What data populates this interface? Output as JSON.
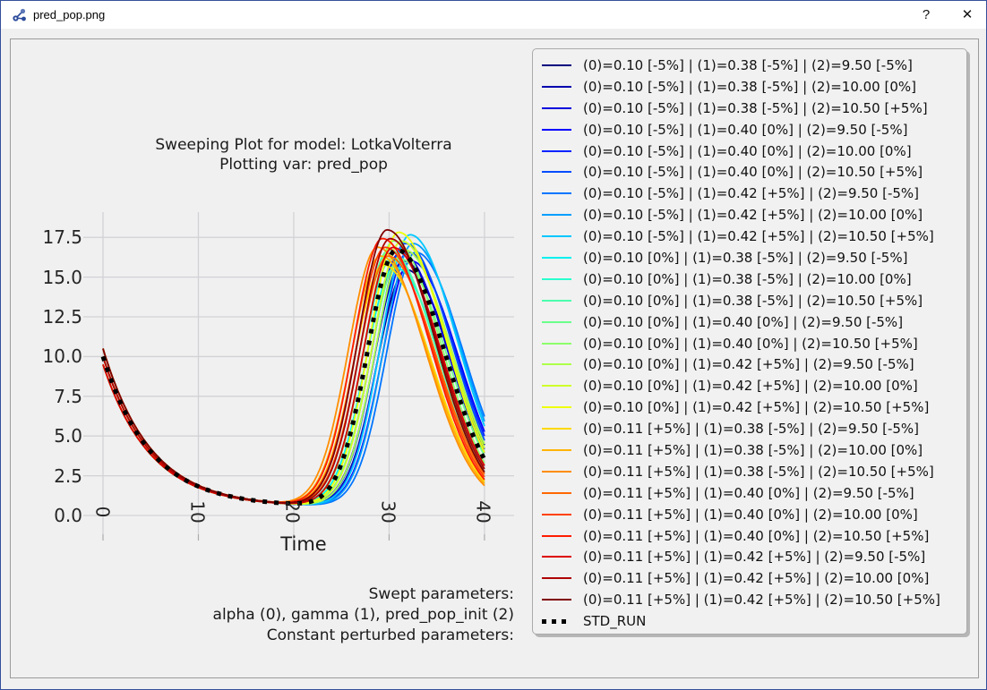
{
  "window": {
    "title": "pred_pop.png",
    "help_label": "?",
    "close_label": "✕"
  },
  "chart": {
    "title_line1": "Sweeping Plot for model: LotkaVolterra",
    "title_line2": "Plotting var: pred_pop",
    "footer_line1": "Swept parameters:",
    "footer_line2": "alpha (0), gamma (1), pred_pop_init (2)",
    "footer_line3": "Constant perturbed parameters:"
  },
  "chart_data": {
    "type": "line",
    "title": "Sweeping Plot for model: LotkaVolterra — Plotting var: pred_pop",
    "xlabel": "Time",
    "ylabel": "",
    "xticks": [
      "0",
      "10",
      "20",
      "30",
      "40"
    ],
    "yticks": [
      "0.0",
      "2.5",
      "5.0",
      "7.5",
      "10.0",
      "12.5",
      "15.0",
      "17.5"
    ],
    "xlim": [
      -2.1,
      43.1
    ],
    "ylim": [
      -1.2,
      19.1
    ],
    "grid": true,
    "legend_position": "outside-right",
    "curve_model": {
      "base": 0.55,
      "decay_tau": 5.0,
      "rise_w": 3.05,
      "fall_w": 5.0
    },
    "series": [
      {
        "label": "(0)=0.10 [-5%] | (1)=0.38 [-5%] | (2)=9.50 [-5%]",
        "color": "#00007f",
        "init": 9.5,
        "peak_t": 31.8,
        "peak_y": 15.45
      },
      {
        "label": "(0)=0.10 [-5%] | (1)=0.38 [-5%] | (2)=10.00 [0%]",
        "color": "#0000ae",
        "init": 10.0,
        "peak_t": 31.5,
        "peak_y": 16.0
      },
      {
        "label": "(0)=0.10 [-5%] | (1)=0.38 [-5%] | (2)=10.50 [+5%]",
        "color": "#0000dc",
        "init": 10.5,
        "peak_t": 31.2,
        "peak_y": 16.55
      },
      {
        "label": "(0)=0.10 [-5%] | (1)=0.40 [0%] | (2)=9.50 [-5%]",
        "color": "#0000ff",
        "init": 9.5,
        "peak_t": 32.3,
        "peak_y": 16.0
      },
      {
        "label": "(0)=0.10 [-5%] | (1)=0.40 [0%] | (2)=10.00 [0%]",
        "color": "#0024ff",
        "init": 10.0,
        "peak_t": 32.0,
        "peak_y": 16.55
      },
      {
        "label": "(0)=0.10 [-5%] | (1)=0.40 [0%] | (2)=10.50 [+5%]",
        "color": "#004dff",
        "init": 10.5,
        "peak_t": 31.7,
        "peak_y": 17.1
      },
      {
        "label": "(0)=0.10 [-5%] | (1)=0.42 [+5%] | (2)=9.50 [-5%]",
        "color": "#0075ff",
        "init": 9.5,
        "peak_t": 32.8,
        "peak_y": 16.55
      },
      {
        "label": "(0)=0.10 [-5%] | (1)=0.42 [+5%] | (2)=10.00 [0%]",
        "color": "#009eff",
        "init": 10.0,
        "peak_t": 32.5,
        "peak_y": 17.1
      },
      {
        "label": "(0)=0.10 [-5%] | (1)=0.42 [+5%] | (2)=10.50 [+5%]",
        "color": "#00c7ff",
        "init": 10.5,
        "peak_t": 32.2,
        "peak_y": 17.65
      },
      {
        "label": "(0)=0.10 [0%] | (1)=0.38 [-5%] | (2)=9.50 [-5%]",
        "color": "#00f0ef",
        "init": 9.5,
        "peak_t": 30.6,
        "peak_y": 15.6
      },
      {
        "label": "(0)=0.10 [0%] | (1)=0.38 [-5%] | (2)=10.00 [0%]",
        "color": "#29ffce",
        "init": 10.0,
        "peak_t": 30.3,
        "peak_y": 16.15
      },
      {
        "label": "(0)=0.10 [0%] | (1)=0.38 [-5%] | (2)=10.50 [+5%]",
        "color": "#4affad",
        "init": 10.5,
        "peak_t": 30.0,
        "peak_y": 16.7
      },
      {
        "label": "(0)=0.10 [0%] | (1)=0.40 [0%] | (2)=9.50 [-5%]",
        "color": "#6bff8c",
        "init": 9.5,
        "peak_t": 31.1,
        "peak_y": 16.15
      },
      {
        "label": "(0)=0.10 [0%] | (1)=0.40 [0%] | (2)=10.50 [+5%]",
        "color": "#8cff6b",
        "init": 10.5,
        "peak_t": 30.5,
        "peak_y": 17.25
      },
      {
        "label": "(0)=0.10 [0%] | (1)=0.42 [+5%] | (2)=9.50 [-5%]",
        "color": "#adff4a",
        "init": 9.5,
        "peak_t": 31.6,
        "peak_y": 16.7
      },
      {
        "label": "(0)=0.10 [0%] | (1)=0.42 [+5%] | (2)=10.00 [0%]",
        "color": "#ceff29",
        "init": 10.0,
        "peak_t": 31.3,
        "peak_y": 17.25
      },
      {
        "label": "(0)=0.10 [0%] | (1)=0.42 [+5%] | (2)=10.50 [+5%]",
        "color": "#eeff08",
        "init": 10.5,
        "peak_t": 31.0,
        "peak_y": 17.8
      },
      {
        "label": "(0)=0.11 [+5%] | (1)=0.38 [-5%] | (2)=9.50 [-5%]",
        "color": "#ffd900",
        "init": 9.5,
        "peak_t": 29.4,
        "peak_y": 15.75
      },
      {
        "label": "(0)=0.11 [+5%] | (1)=0.38 [-5%] | (2)=10.00 [0%]",
        "color": "#ffb300",
        "init": 10.0,
        "peak_t": 29.1,
        "peak_y": 16.3
      },
      {
        "label": "(0)=0.11 [+5%] | (1)=0.38 [-5%] | (2)=10.50 [+5%]",
        "color": "#ff8e00",
        "init": 10.5,
        "peak_t": 28.8,
        "peak_y": 16.85
      },
      {
        "label": "(0)=0.11 [+5%] | (1)=0.40 [0%] | (2)=9.50 [-5%]",
        "color": "#ff6800",
        "init": 9.5,
        "peak_t": 29.9,
        "peak_y": 16.3
      },
      {
        "label": "(0)=0.11 [+5%] | (1)=0.40 [0%] | (2)=10.00 [0%]",
        "color": "#ff4200",
        "init": 10.0,
        "peak_t": 29.6,
        "peak_y": 16.85
      },
      {
        "label": "(0)=0.11 [+5%] | (1)=0.40 [0%] | (2)=10.50 [+5%]",
        "color": "#ff1c00",
        "init": 10.5,
        "peak_t": 29.3,
        "peak_y": 17.4
      },
      {
        "label": "(0)=0.11 [+5%] | (1)=0.42 [+5%] | (2)=9.50 [-5%]",
        "color": "#dc0000",
        "init": 9.5,
        "peak_t": 30.4,
        "peak_y": 16.85
      },
      {
        "label": "(0)=0.11 [+5%] | (1)=0.42 [+5%] | (2)=10.00 [0%]",
        "color": "#ae0000",
        "init": 10.0,
        "peak_t": 30.1,
        "peak_y": 17.4
      },
      {
        "label": "(0)=0.11 [+5%] | (1)=0.42 [+5%] | (2)=10.50 [+5%]",
        "color": "#800000",
        "init": 10.5,
        "peak_t": 29.8,
        "peak_y": 17.95
      }
    ],
    "std_run": {
      "label": "STD_RUN",
      "color": "#000000",
      "dashed": true,
      "init": 10.0,
      "peak_t": 30.8,
      "peak_y": 16.7
    }
  }
}
